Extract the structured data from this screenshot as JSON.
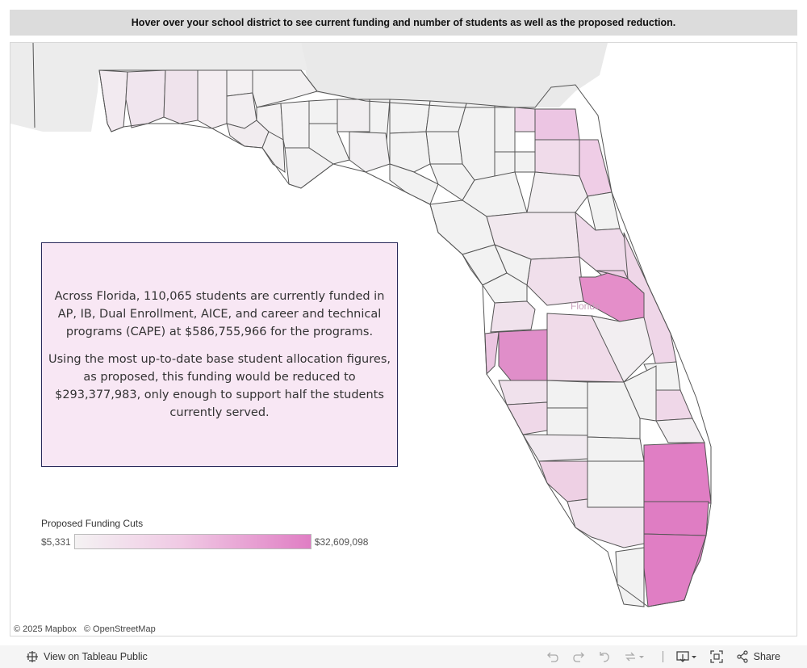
{
  "header": {
    "instruction": "Hover over your school district to see current funding and number of students as well as the proposed reduction."
  },
  "map": {
    "state_label": "Florida",
    "attribution": [
      "© 2025 Mapbox",
      "© OpenStreetMap"
    ],
    "info": {
      "paragraph1": "Across Florida, 110,065 students are currently funded in AP, IB, Dual Enrollment, AICE, and career and technical programs (CAPE) at $586,755,966 for the programs.",
      "paragraph2": "Using the most up-to-date base student allocation figures, as proposed, this funding would be reduced to $293,377,983, only enough to support half the students currently served."
    },
    "legend": {
      "title": "Proposed Funding Cuts",
      "min_label": "$5,331",
      "max_label": "$32,609,098",
      "min_color": "#f4f2f3",
      "max_color": "#e07ec4"
    }
  },
  "toolbar": {
    "view_label": "View on Tableau Public",
    "share_label": "Share",
    "icons": [
      "tableau-icon",
      "undo-icon",
      "redo-icon",
      "revert-icon",
      "refresh-icon",
      "download-icon",
      "fullscreen-icon",
      "share-icon"
    ]
  }
}
